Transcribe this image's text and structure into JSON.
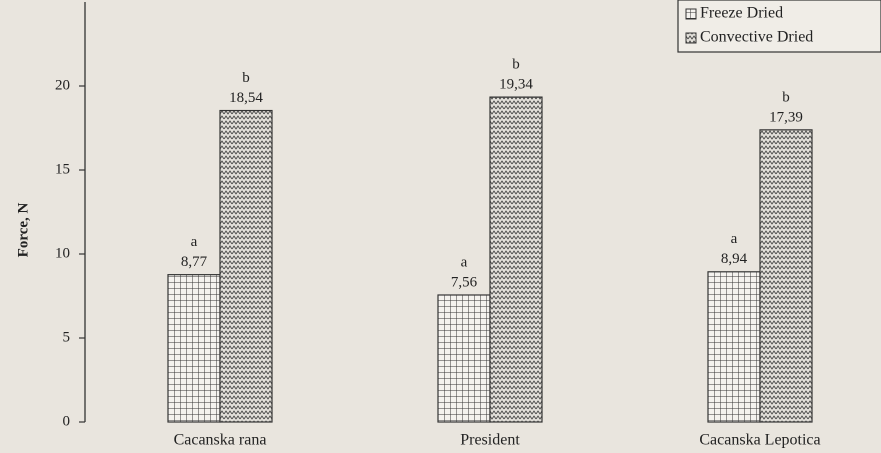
{
  "chart_data": {
    "type": "bar",
    "ylabel": "Force, N",
    "categories": [
      "Cacanska rana",
      "President",
      "Cacanska Lepotica"
    ],
    "series": [
      {
        "name": "Freeze Dried",
        "color": "#333333",
        "pattern": "grid",
        "values": [
          8.77,
          7.56,
          8.94
        ],
        "value_labels": [
          "8,77",
          "7,56",
          "8,94"
        ],
        "annotations": [
          "a",
          "a",
          "a"
        ]
      },
      {
        "name": "Convective Dried",
        "color": "#333333",
        "pattern": "zigzag",
        "values": [
          18.54,
          19.34,
          17.39
        ],
        "value_labels": [
          "18,54",
          "19,34",
          "17,39"
        ],
        "annotations": [
          "b",
          "b",
          "b"
        ]
      }
    ],
    "ylim": [
      0,
      25
    ],
    "yticks": [
      0,
      5,
      10,
      15,
      20
    ],
    "legend": "top-right"
  }
}
